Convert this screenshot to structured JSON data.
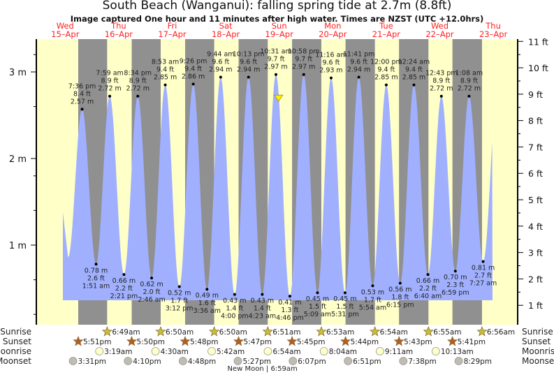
{
  "chart_data": {
    "type": "area",
    "title": "South Beach (Wanganui): falling  spring tide at 2.7m (8.8ft)",
    "subtitle": "Image captured One hour and 11 minutes after high water. Times are NZST (UTC +12.0hrs)",
    "left_axis": {
      "unit": "m",
      "ticks": [
        {
          "v": 1,
          "label": "1 m"
        },
        {
          "v": 2,
          "label": "2 m"
        },
        {
          "v": 3,
          "label": "3 m"
        }
      ]
    },
    "right_axis": {
      "unit": "ft",
      "ticks": [
        "1 ft",
        "2 ft",
        "3 ft",
        "4 ft",
        "5 ft",
        "6 ft",
        "7 ft",
        "8 ft",
        "9 ft",
        "10 ft",
        "11 ft"
      ]
    },
    "days": [
      {
        "dow": "Wed",
        "date": "15–Apr"
      },
      {
        "dow": "Thu",
        "date": "16–Apr"
      },
      {
        "dow": "Fri",
        "date": "17–Apr"
      },
      {
        "dow": "Sat",
        "date": "18–Apr"
      },
      {
        "dow": "Sun",
        "date": "19–Apr"
      },
      {
        "dow": "Mon",
        "date": "20–Apr"
      },
      {
        "dow": "Tue",
        "date": "21–Apr"
      },
      {
        "dow": "Wed",
        "date": "22–Apr"
      },
      {
        "dow": "Thu",
        "date": "23–Apr"
      }
    ],
    "tides": [
      {
        "day": 0,
        "time": "7:36 pm",
        "h": 19.6,
        "m": 2.57,
        "ft": "8.4 ft",
        "type": "high"
      },
      {
        "day": 1,
        "time": "1:51 am",
        "h": 1.85,
        "m": 0.78,
        "ft": "2.6 ft",
        "type": "low"
      },
      {
        "day": 1,
        "time": "7:59 am",
        "h": 7.98,
        "m": 2.72,
        "ft": "8.9 ft",
        "type": "high"
      },
      {
        "day": 1,
        "time": "2:21 pm",
        "h": 14.35,
        "m": 0.66,
        "ft": "2.2 ft",
        "type": "low"
      },
      {
        "day": 1,
        "time": "8:34 pm",
        "h": 20.57,
        "m": 2.72,
        "ft": "8.9 ft",
        "type": "high"
      },
      {
        "day": 2,
        "time": "2:46 am",
        "h": 2.77,
        "m": 0.62,
        "ft": "2.0 ft",
        "type": "low"
      },
      {
        "day": 2,
        "time": "8:53 am",
        "h": 8.88,
        "m": 2.85,
        "ft": "9.4 ft",
        "type": "high"
      },
      {
        "day": 2,
        "time": "3:12 pm",
        "h": 15.2,
        "m": 0.52,
        "ft": "1.7 ft",
        "type": "low"
      },
      {
        "day": 2,
        "time": "9:26 pm",
        "h": 21.43,
        "m": 2.86,
        "ft": "9.4 ft",
        "type": "high"
      },
      {
        "day": 3,
        "time": "3:36 am",
        "h": 3.6,
        "m": 0.49,
        "ft": "1.6 ft",
        "type": "low"
      },
      {
        "day": 3,
        "time": "9:44 am",
        "h": 9.73,
        "m": 2.94,
        "ft": "9.6 ft",
        "type": "high"
      },
      {
        "day": 3,
        "time": "4:00 pm",
        "h": 16.0,
        "m": 0.43,
        "ft": "1.4 ft",
        "type": "low"
      },
      {
        "day": 3,
        "time": "10:13 pm",
        "h": 22.22,
        "m": 2.94,
        "ft": "9.6 ft",
        "type": "high"
      },
      {
        "day": 4,
        "time": "4:23 am",
        "h": 4.38,
        "m": 0.43,
        "ft": "1.4 ft",
        "type": "low"
      },
      {
        "day": 4,
        "time": "10:31 am",
        "h": 10.52,
        "m": 2.97,
        "ft": "9.7 ft",
        "type": "high"
      },
      {
        "day": 4,
        "time": "4:46 pm",
        "h": 16.77,
        "m": 0.41,
        "ft": "1.3 ft",
        "type": "low"
      },
      {
        "day": 4,
        "time": "10:58 pm",
        "h": 22.97,
        "m": 2.97,
        "ft": "9.7 ft",
        "type": "high"
      },
      {
        "day": 5,
        "time": "5:09 am",
        "h": 5.15,
        "m": 0.45,
        "ft": "1.5 ft",
        "type": "low"
      },
      {
        "day": 5,
        "time": "11:16 am",
        "h": 11.27,
        "m": 2.93,
        "ft": "9.6 ft",
        "type": "high"
      },
      {
        "day": 5,
        "time": "5:31 pm",
        "h": 17.52,
        "m": 0.45,
        "ft": "1.5 ft",
        "type": "low"
      },
      {
        "day": 5,
        "time": "11:41 pm",
        "h": 23.68,
        "m": 2.94,
        "ft": "9.6 ft",
        "type": "high"
      },
      {
        "day": 6,
        "time": "5:54 am",
        "h": 5.9,
        "m": 0.53,
        "ft": "1.7 ft",
        "type": "low"
      },
      {
        "day": 6,
        "time": "12:00 pm",
        "h": 12.0,
        "m": 2.85,
        "ft": "9.4 ft",
        "type": "high"
      },
      {
        "day": 6,
        "time": "6:15 pm",
        "h": 18.25,
        "m": 0.56,
        "ft": "1.8 ft",
        "type": "low"
      },
      {
        "day": 7,
        "time": "12:24 am",
        "h": 0.4,
        "m": 2.85,
        "ft": "9.4 ft",
        "type": "high"
      },
      {
        "day": 7,
        "time": "6:40 am",
        "h": 6.67,
        "m": 0.66,
        "ft": "2.2 ft",
        "type": "low"
      },
      {
        "day": 7,
        "time": "12:43 pm",
        "h": 12.72,
        "m": 2.72,
        "ft": "8.9 ft",
        "type": "high"
      },
      {
        "day": 7,
        "time": "6:59 pm",
        "h": 18.98,
        "m": 0.7,
        "ft": "2.3 ft",
        "type": "low"
      },
      {
        "day": 8,
        "time": "1:08 am",
        "h": 1.13,
        "m": 2.72,
        "ft": "8.9 ft",
        "type": "high"
      },
      {
        "day": 8,
        "time": "7:27 am",
        "h": 7.45,
        "m": 0.81,
        "ft": "2.7 ft",
        "type": "low"
      }
    ],
    "current": {
      "day": 4,
      "h": 11.7,
      "m": 2.7,
      "marker": "yellow-triangle"
    },
    "sun_moon": {
      "row_labels": {
        "sunrise": "Sunrise",
        "sunset": "Sunset",
        "moonrise": "Moonrise",
        "moonset": "Moonset"
      },
      "sunrise": [
        {
          "day": 1,
          "h": 6.82,
          "t": "6:49am"
        },
        {
          "day": 2,
          "h": 6.83,
          "t": "6:50am"
        },
        {
          "day": 3,
          "h": 6.83,
          "t": "6:50am"
        },
        {
          "day": 4,
          "h": 6.85,
          "t": "6:51am"
        },
        {
          "day": 5,
          "h": 6.88,
          "t": "6:53am"
        },
        {
          "day": 6,
          "h": 6.9,
          "t": "6:54am"
        },
        {
          "day": 7,
          "h": 6.92,
          "t": "6:55am"
        },
        {
          "day": 8,
          "h": 6.93,
          "t": "6:56am"
        }
      ],
      "sunset": [
        {
          "day": 0,
          "h": 17.85,
          "t": "5:51pm"
        },
        {
          "day": 1,
          "h": 17.83,
          "t": "5:50pm"
        },
        {
          "day": 2,
          "h": 17.8,
          "t": "5:48pm"
        },
        {
          "day": 3,
          "h": 17.78,
          "t": "5:47pm"
        },
        {
          "day": 4,
          "h": 17.75,
          "t": "5:45pm"
        },
        {
          "day": 5,
          "h": 17.73,
          "t": "5:44pm"
        },
        {
          "day": 6,
          "h": 17.72,
          "t": "5:43pm"
        },
        {
          "day": 7,
          "h": 17.68,
          "t": "5:41pm"
        }
      ],
      "moonrise": [
        {
          "day": 1,
          "h": 3.32,
          "t": "3:19am"
        },
        {
          "day": 2,
          "h": 4.5,
          "t": "4:30am"
        },
        {
          "day": 3,
          "h": 5.7,
          "t": "5:42am"
        },
        {
          "day": 4,
          "h": 6.9,
          "t": "6:54am"
        },
        {
          "day": 5,
          "h": 8.07,
          "t": "8:04am"
        },
        {
          "day": 6,
          "h": 9.18,
          "t": "9:11am"
        },
        {
          "day": 7,
          "h": 10.22,
          "t": "10:13am"
        }
      ],
      "moonset": [
        {
          "day": 0,
          "h": 15.52,
          "t": "3:31pm"
        },
        {
          "day": 1,
          "h": 16.17,
          "t": "4:10pm"
        },
        {
          "day": 2,
          "h": 16.8,
          "t": "4:48pm"
        },
        {
          "day": 3,
          "h": 17.45,
          "t": "5:27pm"
        },
        {
          "day": 4,
          "h": 18.12,
          "t": "6:07pm"
        },
        {
          "day": 5,
          "h": 18.85,
          "t": "6:51pm"
        },
        {
          "day": 6,
          "h": 19.63,
          "t": "7:38pm"
        },
        {
          "day": 7,
          "h": 20.48,
          "t": "8:29pm"
        }
      ],
      "moon_phase": {
        "day": 4,
        "h": 6.98,
        "label": "New Moon | 6:59am"
      }
    },
    "colors": {
      "day": "#ffffc8",
      "night": "#909090",
      "water": "#a0b0ff",
      "day_label": "#ff2020",
      "sunrise": "#c8c030",
      "sunset": "#b06020",
      "moonrise": "#ffffc8",
      "moonset": "#c0bcb0"
    }
  }
}
